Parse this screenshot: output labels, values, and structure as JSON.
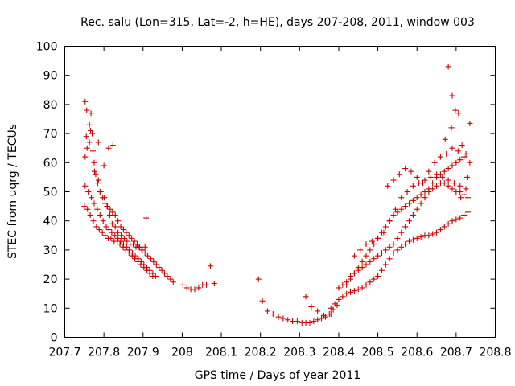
{
  "chart_data": {
    "type": "scatter",
    "title": "Rec. salu (Lon=315, Lat=-2, h=HE), days 207-208, 2011, window 003",
    "xlabel": "GPS time / Days of year 2011",
    "ylabel": "STEC from uqrg / TECUs",
    "xlim": [
      207.7,
      208.8
    ],
    "ylim": [
      0,
      100
    ],
    "xticks": [
      207.7,
      207.8,
      207.9,
      208,
      208.1,
      208.2,
      208.3,
      208.4,
      208.5,
      208.6,
      208.7,
      208.8
    ],
    "xtick_labels": [
      "207.7",
      "207.8",
      "207.9",
      "208",
      "208.1",
      "208.2",
      "208.3",
      "208.4",
      "208.5",
      "208.6",
      "208.7",
      "208.8"
    ],
    "yticks": [
      0,
      10,
      20,
      30,
      40,
      50,
      60,
      70,
      80,
      90,
      100
    ],
    "ytick_labels": [
      "0",
      "10",
      "20",
      "30",
      "40",
      "50",
      "60",
      "70",
      "80",
      "90",
      "100"
    ],
    "grid": false,
    "legend": "none",
    "marker": "+",
    "color": "#cc0000",
    "series": [
      {
        "x": [
          207.752,
          207.756,
          207.763,
          207.766,
          207.772,
          207.775,
          207.779,
          207.786,
          207.792,
          207.801,
          207.808,
          207.815,
          207.821,
          207.829,
          207.836,
          207.844,
          207.852,
          207.859,
          207.867,
          207.875,
          207.882,
          207.89,
          207.897,
          207.905,
          207.752,
          207.757,
          207.763,
          207.77,
          207.776,
          207.784,
          207.79,
          207.797,
          207.803,
          207.809,
          207.816,
          207.822,
          207.829,
          207.836,
          207.843,
          207.85,
          207.857,
          207.864,
          207.871,
          207.878,
          207.885,
          207.891,
          207.898,
          207.905,
          207.912,
          207.92,
          207.927,
          207.934,
          207.941,
          207.948,
          207.955,
          207.962,
          207.97,
          207.977,
          207.752,
          207.76,
          207.768,
          207.775,
          207.783,
          207.79,
          207.798,
          207.806,
          207.813,
          207.82,
          207.828,
          207.836,
          207.843,
          207.85,
          207.858,
          207.865,
          207.873,
          207.88,
          207.888,
          207.895,
          207.902,
          207.91,
          207.917,
          207.925,
          207.932,
          207.75,
          207.758,
          207.765,
          207.773,
          207.781,
          207.788,
          207.796,
          207.803,
          207.811,
          207.818,
          207.826,
          207.834,
          207.841,
          207.849,
          207.856,
          207.864,
          207.872,
          207.879,
          207.887,
          207.894,
          207.902,
          207.91,
          207.917,
          207.925,
          207.755,
          207.767,
          207.786,
          207.8,
          207.812,
          207.823,
          207.908,
          208.002,
          208.012,
          208.022,
          208.032,
          208.042,
          208.052,
          208.062,
          208.072,
          208.082
        ],
        "y": [
          81,
          78,
          73,
          71,
          64,
          60,
          56,
          54,
          50,
          48,
          45,
          42,
          39,
          38,
          36,
          35,
          34,
          33,
          32,
          32,
          31,
          31,
          30,
          31,
          62,
          65,
          67,
          70,
          57,
          53,
          50,
          48,
          46,
          45,
          44,
          43,
          42,
          40,
          38,
          37,
          36,
          35,
          34,
          33,
          32,
          31,
          30,
          29,
          28,
          27,
          26,
          25,
          24,
          23,
          22,
          21,
          20,
          19,
          52,
          50,
          48,
          46,
          44,
          42,
          40,
          38,
          37,
          36,
          35,
          34,
          33,
          32,
          31,
          30,
          29,
          28,
          27,
          26,
          25,
          24,
          23,
          22,
          21,
          45,
          44,
          42,
          40,
          38,
          37,
          36,
          35,
          34,
          34,
          33,
          33,
          32,
          31,
          30,
          29,
          28,
          27,
          26,
          25,
          24,
          23,
          22,
          21,
          69,
          77,
          67,
          59,
          65,
          66,
          41,
          18,
          17,
          16.5,
          16.5,
          17,
          18,
          18,
          24.5,
          18.5
        ]
      },
      {
        "x": [
          208.195,
          208.205,
          208.218,
          208.232,
          208.246,
          208.258,
          208.27,
          208.282,
          208.294,
          208.306,
          208.316,
          208.326,
          208.336,
          208.346,
          208.356,
          208.366,
          208.376,
          208.386,
          208.396,
          208.316,
          208.33,
          208.346,
          208.362,
          208.38
        ],
        "y": [
          20,
          12.5,
          9,
          8,
          7,
          6.5,
          6,
          5.5,
          5.5,
          5,
          5,
          5,
          5.5,
          6,
          6.5,
          7,
          8,
          9.5,
          11,
          14,
          10.5,
          9,
          7.5,
          8
        ]
      },
      {
        "x": [
          208.38,
          208.39,
          208.4,
          208.41,
          208.42,
          208.43,
          208.44,
          208.45,
          208.46,
          208.47,
          208.48,
          208.49,
          208.5,
          208.51,
          208.52,
          208.53,
          208.54,
          208.55,
          208.56,
          208.57,
          208.58,
          208.59,
          208.6,
          208.61,
          208.62,
          208.63,
          208.64,
          208.65,
          208.66,
          208.67,
          208.68,
          208.69,
          208.7,
          208.71,
          208.72,
          208.73,
          208.4,
          208.41,
          208.42,
          208.43,
          208.44,
          208.45,
          208.46,
          208.47,
          208.48,
          208.49,
          208.5,
          208.51,
          208.52,
          208.53,
          208.54,
          208.55,
          208.56,
          208.57,
          208.58,
          208.59,
          208.6,
          208.61,
          208.62,
          208.63,
          208.64,
          208.65,
          208.66,
          208.67,
          208.68,
          208.69,
          208.7,
          208.71,
          208.72,
          208.73,
          208.42,
          208.43,
          208.44,
          208.45,
          208.46,
          208.47,
          208.48,
          208.49,
          208.5,
          208.51,
          208.52,
          208.53,
          208.54,
          208.55,
          208.56,
          208.57,
          208.58,
          208.59,
          208.6,
          208.61,
          208.62,
          208.63,
          208.64,
          208.65,
          208.66,
          208.67,
          208.68,
          208.69,
          208.7,
          208.71,
          208.72,
          208.73,
          208.44,
          208.455,
          208.47,
          208.485,
          208.5,
          208.515,
          208.53,
          208.545,
          208.56,
          208.575,
          208.59,
          208.605,
          208.62,
          208.635,
          208.65,
          208.665,
          208.68,
          208.695,
          208.71,
          208.725,
          208.525,
          208.54,
          208.555,
          208.57,
          208.585,
          208.6,
          208.615,
          208.63,
          208.645,
          208.66,
          208.675,
          208.69,
          208.705,
          208.72,
          208.735,
          208.68,
          208.69,
          208.698,
          208.706,
          208.715,
          208.725,
          208.735,
          208.672,
          208.688,
          208.712,
          208.728
        ],
        "y": [
          10,
          11.5,
          13,
          14,
          15,
          15.5,
          16,
          16.5,
          17,
          18,
          19,
          20,
          21,
          23,
          25,
          27,
          29,
          30,
          31,
          32,
          33,
          33.5,
          34,
          34.5,
          35,
          35,
          35.5,
          36,
          37,
          38,
          39,
          40,
          40.5,
          41,
          42,
          43,
          17,
          18,
          19,
          21,
          22,
          23,
          24,
          25,
          26,
          27,
          28,
          29,
          30,
          31,
          32,
          34,
          36,
          38,
          40,
          42,
          44,
          46,
          48,
          50,
          51,
          52,
          53,
          53,
          52,
          51,
          50,
          50,
          49,
          48,
          18,
          20,
          22,
          24,
          26,
          28,
          30,
          32,
          34,
          36,
          38,
          40,
          42,
          43,
          44,
          45,
          46,
          47,
          48,
          49,
          50,
          51,
          53,
          55,
          56,
          57,
          58,
          59,
          60,
          61,
          62,
          63,
          28,
          30,
          32,
          33,
          34,
          36,
          40,
          44,
          48,
          50,
          52,
          53,
          54,
          55,
          56,
          55,
          54,
          53,
          52,
          51,
          52,
          54,
          56,
          58,
          57,
          55,
          53,
          57,
          60,
          62,
          63,
          65,
          64,
          62,
          60,
          93,
          83,
          78,
          77,
          66,
          63,
          73.5,
          68,
          72,
          48,
          55
        ]
      }
    ]
  }
}
